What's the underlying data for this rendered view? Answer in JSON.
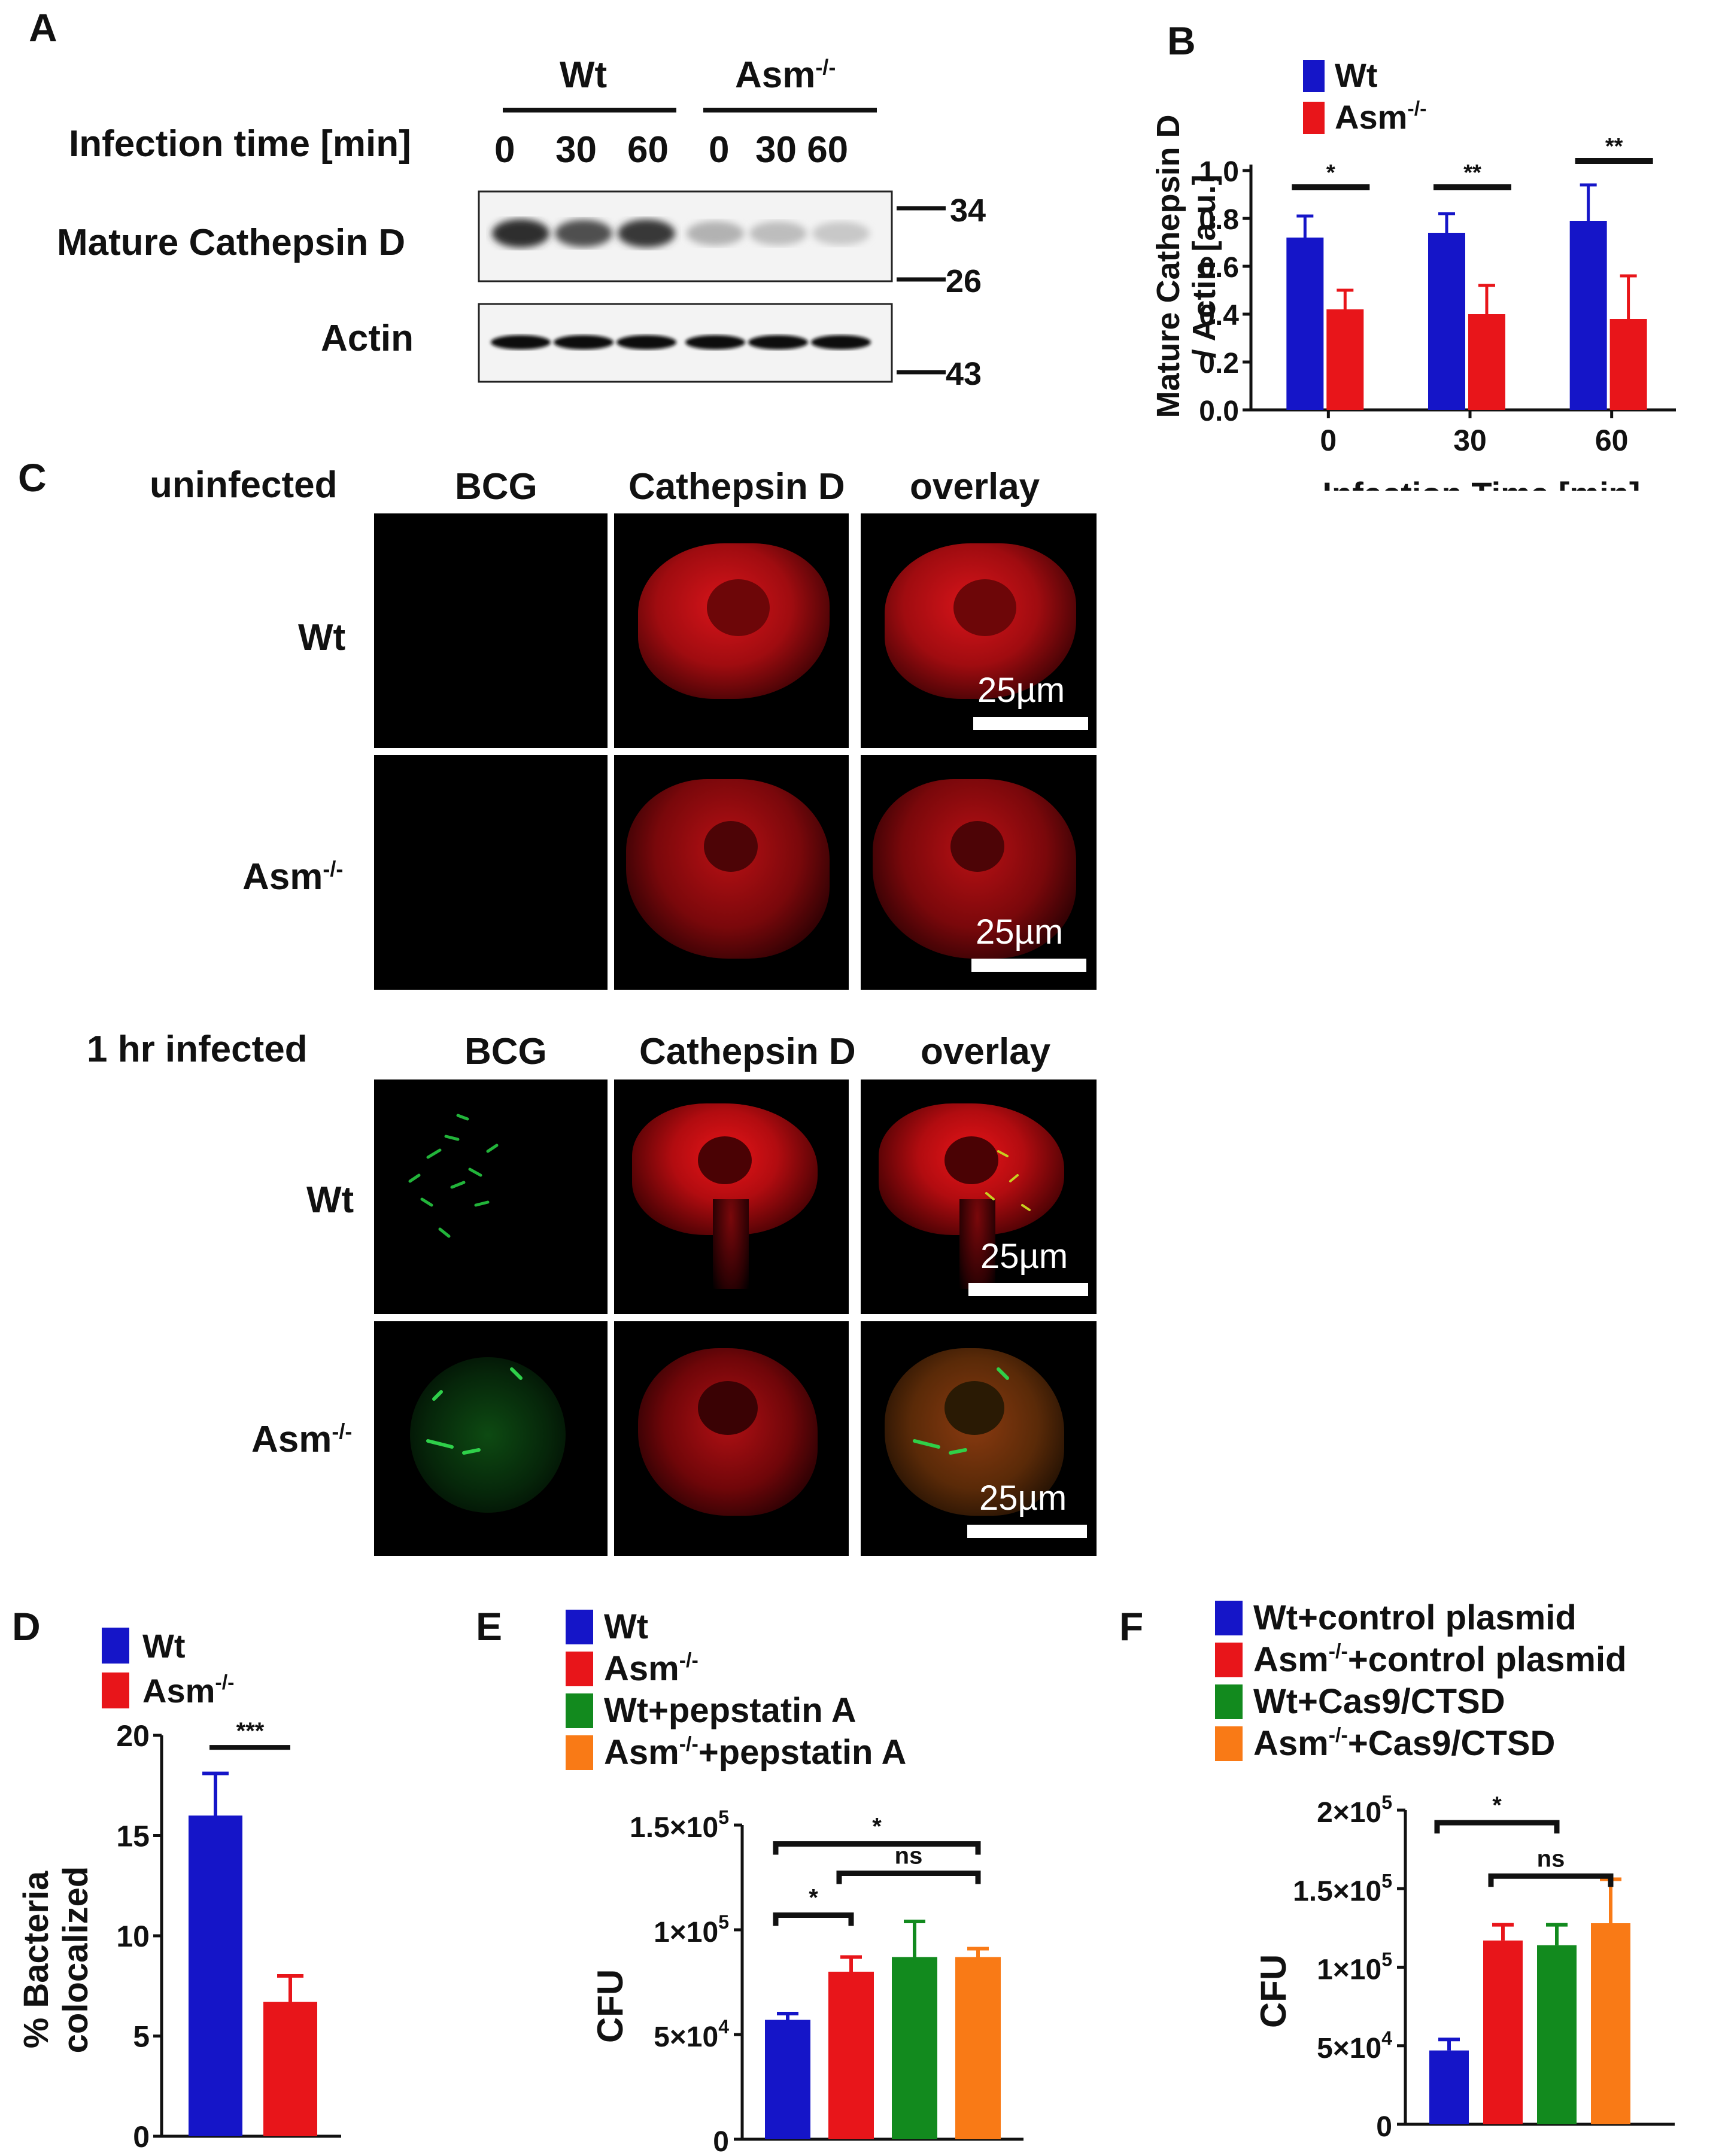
{
  "panel_letters": {
    "A": "A",
    "B": "B",
    "C": "C",
    "D": "D",
    "E": "E",
    "F": "F"
  },
  "panel_a": {
    "group_wt": "Wt",
    "group_asm": "Asm",
    "group_asm_sup": "-/-",
    "infection_time_label": "Infection time [min]",
    "time_labels": [
      "0",
      "30",
      "60",
      "0",
      "30 60"
    ],
    "row_labels": [
      "Mature Cathepsin D",
      "Actin"
    ],
    "markers": [
      "34",
      "26",
      "43"
    ],
    "cathepsin_band_intensity": [
      0.95,
      0.8,
      0.9,
      0.35,
      0.3,
      0.25
    ]
  },
  "panel_c": {
    "section1_title": "uninfected",
    "section2_title": "1 hr infected",
    "column_headers": [
      "BCG",
      "Cathepsin D",
      "overlay"
    ],
    "row_wt": "Wt",
    "row_asm": "Asm",
    "row_asm_sup": "-/-",
    "scale_bar": "25µm"
  },
  "colors": {
    "wt": "#1515c8",
    "asm": "#e8151a",
    "green": "#128a1e",
    "orange": "#f97a16"
  },
  "chart_data": [
    {
      "panel": "B",
      "type": "bar",
      "categories": [
        "0",
        "30",
        "60"
      ],
      "series": [
        {
          "name": "Wt",
          "sup": "",
          "values": [
            0.72,
            0.74,
            0.79
          ],
          "errors": [
            0.09,
            0.08,
            0.15
          ],
          "color": "#1515c8"
        },
        {
          "name": "Asm",
          "sup": "-/-",
          "values": [
            0.42,
            0.4,
            0.38
          ],
          "errors": [
            0.08,
            0.12,
            0.18
          ],
          "color": "#e8151a"
        }
      ],
      "ylabel_lines": [
        "Mature Cathepsin D",
        "/ Actin [a.u.]"
      ],
      "xlabel": "Infection Time [min]",
      "ylim": [
        0,
        1.0
      ],
      "yticks": [
        "0.0",
        "0.2",
        "0.4",
        "0.6",
        "0.8",
        "1.0"
      ],
      "significance": [
        "*",
        "**",
        "**"
      ]
    },
    {
      "panel": "D",
      "type": "bar",
      "categories": [
        "Wt",
        "Asm-/-"
      ],
      "values": [
        16,
        6.7
      ],
      "errors": [
        2.1,
        1.3
      ],
      "colors": [
        "#1515c8",
        "#e8151a"
      ],
      "legend": [
        {
          "name": "Wt",
          "sup": ""
        },
        {
          "name": "Asm",
          "sup": "-/-"
        }
      ],
      "ylabel_lines": [
        "% Bacteria",
        "colocalized"
      ],
      "ylim": [
        0,
        20
      ],
      "yticks": [
        "0",
        "5",
        "10",
        "15",
        "20"
      ],
      "significance": [
        "***"
      ]
    },
    {
      "panel": "E",
      "type": "bar",
      "categories": [
        "Wt",
        "Asm-/-",
        "Wt+pepstatin A",
        "Asm-/-+pepstatin A"
      ],
      "values": [
        57000,
        80000,
        87000,
        87000
      ],
      "errors": [
        3000,
        7000,
        17000,
        4000
      ],
      "colors": [
        "#1515c8",
        "#e8151a",
        "#128a1e",
        "#f97a16"
      ],
      "legend": [
        {
          "name": "Wt",
          "sup": "",
          "rest": ""
        },
        {
          "name": "Asm",
          "sup": "-/-",
          "rest": ""
        },
        {
          "name": "Wt+pepstatin A",
          "sup": "",
          "rest": ""
        },
        {
          "name": "Asm",
          "sup": "-/-",
          "rest": "+pepstatin A"
        }
      ],
      "ylabel": "CFU",
      "ylim": [
        0,
        150000
      ],
      "yticks": [
        {
          "v": 0,
          "base": "0",
          "exp": ""
        },
        {
          "v": 50000,
          "base": "5×10",
          "exp": "4"
        },
        {
          "v": 100000,
          "base": "1×10",
          "exp": "5"
        },
        {
          "v": 150000,
          "base": "1.5×10",
          "exp": "5"
        }
      ],
      "significance": [
        "*",
        "*",
        "ns"
      ]
    },
    {
      "panel": "F",
      "type": "bar",
      "categories": [
        "Wt+control plasmid",
        "Asm-/-+control plasmid",
        "Wt+Cas9/CTSD",
        "Asm-/-+Cas9/CTSD"
      ],
      "values": [
        47000,
        117000,
        114000,
        128000
      ],
      "errors": [
        7000,
        10000,
        13000,
        28000
      ],
      "colors": [
        "#1515c8",
        "#e8151a",
        "#128a1e",
        "#f97a16"
      ],
      "legend": [
        {
          "name": "Wt+control plasmid",
          "sup": "",
          "rest": ""
        },
        {
          "name": "Asm",
          "sup": "-/-",
          "rest": "+control plasmid"
        },
        {
          "name": "Wt+Cas9/CTSD",
          "sup": "",
          "rest": ""
        },
        {
          "name": "Asm",
          "sup": "-/-",
          "rest": "+Cas9/CTSD"
        }
      ],
      "ylabel": "CFU",
      "ylim": [
        0,
        200000
      ],
      "yticks": [
        {
          "v": 0,
          "base": "0",
          "exp": ""
        },
        {
          "v": 50000,
          "base": "5×10",
          "exp": "4"
        },
        {
          "v": 100000,
          "base": "1×10",
          "exp": "5"
        },
        {
          "v": 150000,
          "base": "1.5×10",
          "exp": "5"
        },
        {
          "v": 200000,
          "base": "2×10",
          "exp": "5"
        }
      ],
      "significance": [
        "*",
        "ns"
      ]
    }
  ]
}
